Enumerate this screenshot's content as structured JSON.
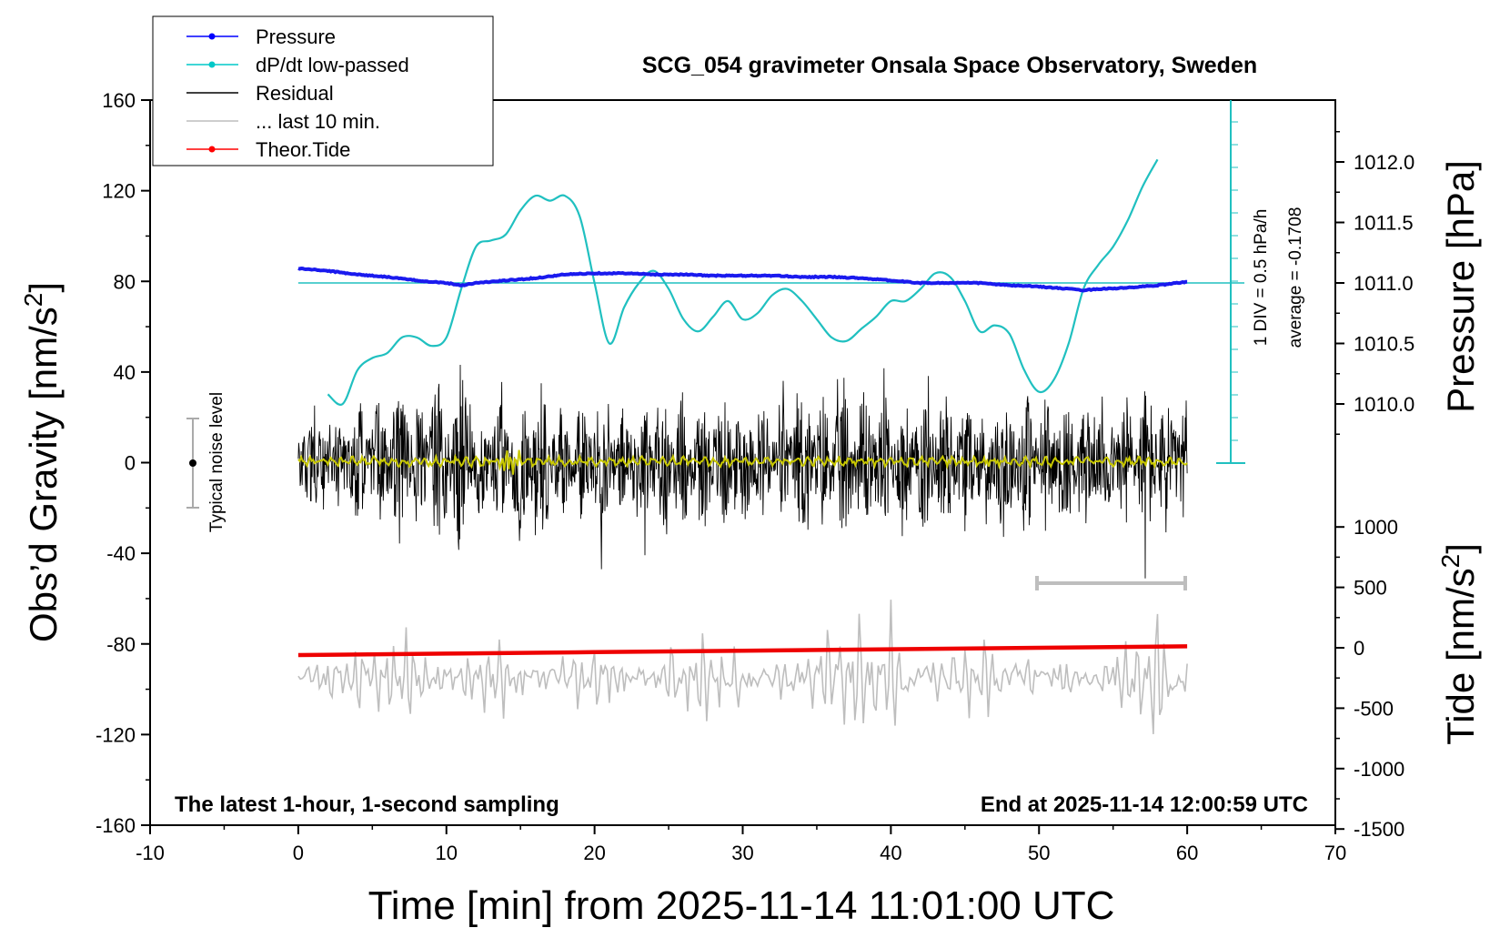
{
  "chart_data": {
    "type": "line",
    "title": "SCG_054 gravimeter Onsala Space Observatory, Sweden",
    "xlabel": "Time [min] from 2025-11-14 11:01:00 UTC",
    "ylabel_left": "Obs’d Gravity [nm/s²]",
    "ylabel_right_top": "Pressure [hPa]",
    "ylabel_right_bottom": "Tide [nm/s²]",
    "annotation_left": "The latest 1-hour, 1-second sampling",
    "annotation_right": "End at 2025-11-14 12:00:59 UTC",
    "noise_label": "Typical noise level",
    "dpdt_scale_label": "1 DIV = 0.5 hPa/h",
    "dpdt_average_label": "average = -0.1708",
    "xlim": [
      -10,
      70
    ],
    "xticks": [
      "-10",
      "0",
      "10",
      "20",
      "30",
      "40",
      "50",
      "60",
      "70"
    ],
    "ylim_left": [
      -160,
      160
    ],
    "yticks_left": [
      "-160",
      "-120",
      "-80",
      "-40",
      "0",
      "40",
      "80",
      "120",
      "160"
    ],
    "pressure_ticks": [
      "1010.0",
      "1010.5",
      "1011.0",
      "1011.5",
      "1012.0"
    ],
    "tide_ticks": [
      "-1500",
      "-1000",
      "-500",
      "0",
      "500",
      "1000"
    ],
    "grid": false,
    "legend_position": "top-left",
    "legend": [
      {
        "label": "Pressure",
        "color": "#0000ff",
        "marker": "dot"
      },
      {
        "label": "dP/dt low-passed",
        "color": "#00c8c8",
        "marker": "dot"
      },
      {
        "label": "Residual",
        "color": "#000000",
        "marker": "line"
      },
      {
        "label": "... last 10 min.",
        "color": "#bebebe",
        "marker": "line"
      },
      {
        "label": "Theor.Tide",
        "color": "#ff0000",
        "marker": "dot"
      }
    ],
    "colors": {
      "pressure": "#1a1aee",
      "dpdt": "#20c0c0",
      "residual": "#000000",
      "residual_smooth": "#c8c800",
      "last10": "#bebebe",
      "tide": "#ee0000"
    },
    "series": [
      {
        "name": "Pressure",
        "axis": "pressure",
        "x": [
          0,
          2,
          4,
          6,
          8,
          10,
          11,
          12,
          14,
          16,
          18,
          20,
          22,
          24,
          26,
          28,
          30,
          32,
          34,
          36,
          38,
          40,
          42,
          44,
          46,
          48,
          50,
          52,
          53,
          54,
          56,
          58,
          60
        ],
        "values": [
          1011.12,
          1011.1,
          1011.07,
          1011.05,
          1011.02,
          1011.0,
          1010.98,
          1011.0,
          1011.02,
          1011.04,
          1011.07,
          1011.08,
          1011.08,
          1011.07,
          1011.07,
          1011.06,
          1011.06,
          1011.06,
          1011.05,
          1011.05,
          1011.04,
          1011.02,
          1011.0,
          1011.0,
          1011.0,
          1010.98,
          1010.97,
          1010.95,
          1010.94,
          1010.95,
          1010.96,
          1010.98,
          1011.01
        ]
      },
      {
        "name": "dP/dt low-passed",
        "axis": "pressure",
        "x": [
          2,
          3,
          4,
          5,
          6,
          7,
          8,
          9,
          10,
          11,
          12,
          13,
          14,
          15,
          16,
          17,
          18,
          19,
          20,
          21,
          22,
          23,
          24,
          25,
          26,
          27,
          28,
          29,
          30,
          31,
          32,
          33,
          34,
          35,
          36,
          37,
          38,
          39,
          40,
          41,
          42,
          43,
          44,
          45,
          46,
          47,
          48,
          49,
          50,
          51,
          52,
          53,
          54,
          55,
          56,
          57,
          58
        ],
        "values": [
          1010.08,
          1010.0,
          1010.28,
          1010.38,
          1010.42,
          1010.55,
          1010.55,
          1010.48,
          1010.55,
          1010.95,
          1011.3,
          1011.35,
          1011.4,
          1011.6,
          1011.72,
          1011.68,
          1011.72,
          1011.55,
          1011.0,
          1010.5,
          1010.8,
          1011.0,
          1011.1,
          1010.95,
          1010.7,
          1010.6,
          1010.72,
          1010.85,
          1010.7,
          1010.75,
          1010.9,
          1010.95,
          1010.85,
          1010.7,
          1010.55,
          1010.52,
          1010.62,
          1010.72,
          1010.85,
          1010.85,
          1010.95,
          1011.08,
          1011.05,
          1010.85,
          1010.6,
          1010.65,
          1010.58,
          1010.28,
          1010.1,
          1010.2,
          1010.5,
          1010.95,
          1011.15,
          1011.3,
          1011.52,
          1011.8,
          1012.02
        ]
      },
      {
        "name": "Residual",
        "axis": "gravity",
        "range_x": [
          0,
          60
        ],
        "values": [
          0,
          20,
          -20,
          35,
          -35,
          45,
          -40,
          60,
          -58,
          25,
          -30,
          40,
          -45,
          30,
          -28,
          35,
          -30,
          42,
          -40,
          45,
          -42,
          38,
          -35,
          30,
          -28,
          45,
          -40,
          50,
          -44,
          38,
          -36,
          42,
          -45,
          35,
          -30,
          48,
          -47,
          36,
          -34,
          30,
          -32,
          40,
          -50,
          44,
          -42
        ]
      },
      {
        "name": "... last 10 min.",
        "axis": "gravity",
        "range_x": [
          0,
          60
        ],
        "values": [
          -95,
          -85,
          -105,
          -88,
          -80,
          -118,
          -70,
          -125,
          -82,
          -100,
          -90,
          -110,
          -75,
          -120,
          -85,
          -95,
          -88,
          -108,
          -78,
          -115,
          -82,
          -92,
          -98,
          -86,
          -120,
          -72,
          -130,
          -80,
          -112,
          -90,
          -95,
          -86,
          -104,
          -76,
          -128,
          -66,
          -140,
          -70,
          -135,
          -90,
          -96,
          -85,
          -110,
          -72,
          -126,
          -84,
          -98,
          -80,
          -102,
          -88,
          -95,
          -100,
          -85,
          -118,
          -70,
          -142,
          -92,
          -100
        ]
      },
      {
        "name": "Theor.Tide",
        "axis": "tide",
        "x": [
          0,
          10,
          20,
          30,
          40,
          50,
          60
        ],
        "values": [
          -60,
          -48,
          -36,
          -24,
          -12,
          0,
          12
        ]
      }
    ]
  }
}
